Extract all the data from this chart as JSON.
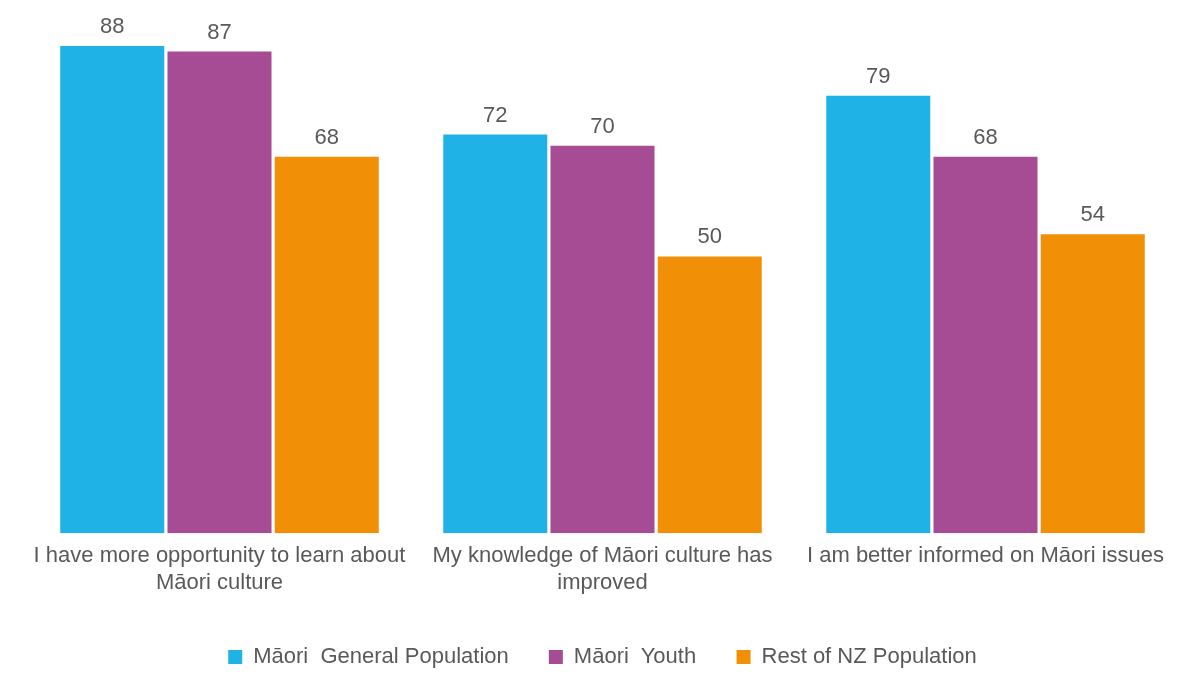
{
  "chart_data": {
    "type": "bar",
    "categories": [
      "I have more opportunity to learn about Māori culture",
      "My knowledge of Māori culture has improved",
      "I am better informed on Māori issues"
    ],
    "series": [
      {
        "name": "Māori  General Population",
        "color": "#1fb2e6",
        "values": [
          88,
          72,
          79
        ]
      },
      {
        "name": "Māori  Youth",
        "color": "#a54c94",
        "values": [
          87,
          70,
          68
        ]
      },
      {
        "name": "Rest of NZ Population",
        "color": "#f18f07",
        "values": [
          68,
          50,
          54
        ]
      }
    ],
    "data_labels": true,
    "legend": "bottom",
    "grid": false
  }
}
